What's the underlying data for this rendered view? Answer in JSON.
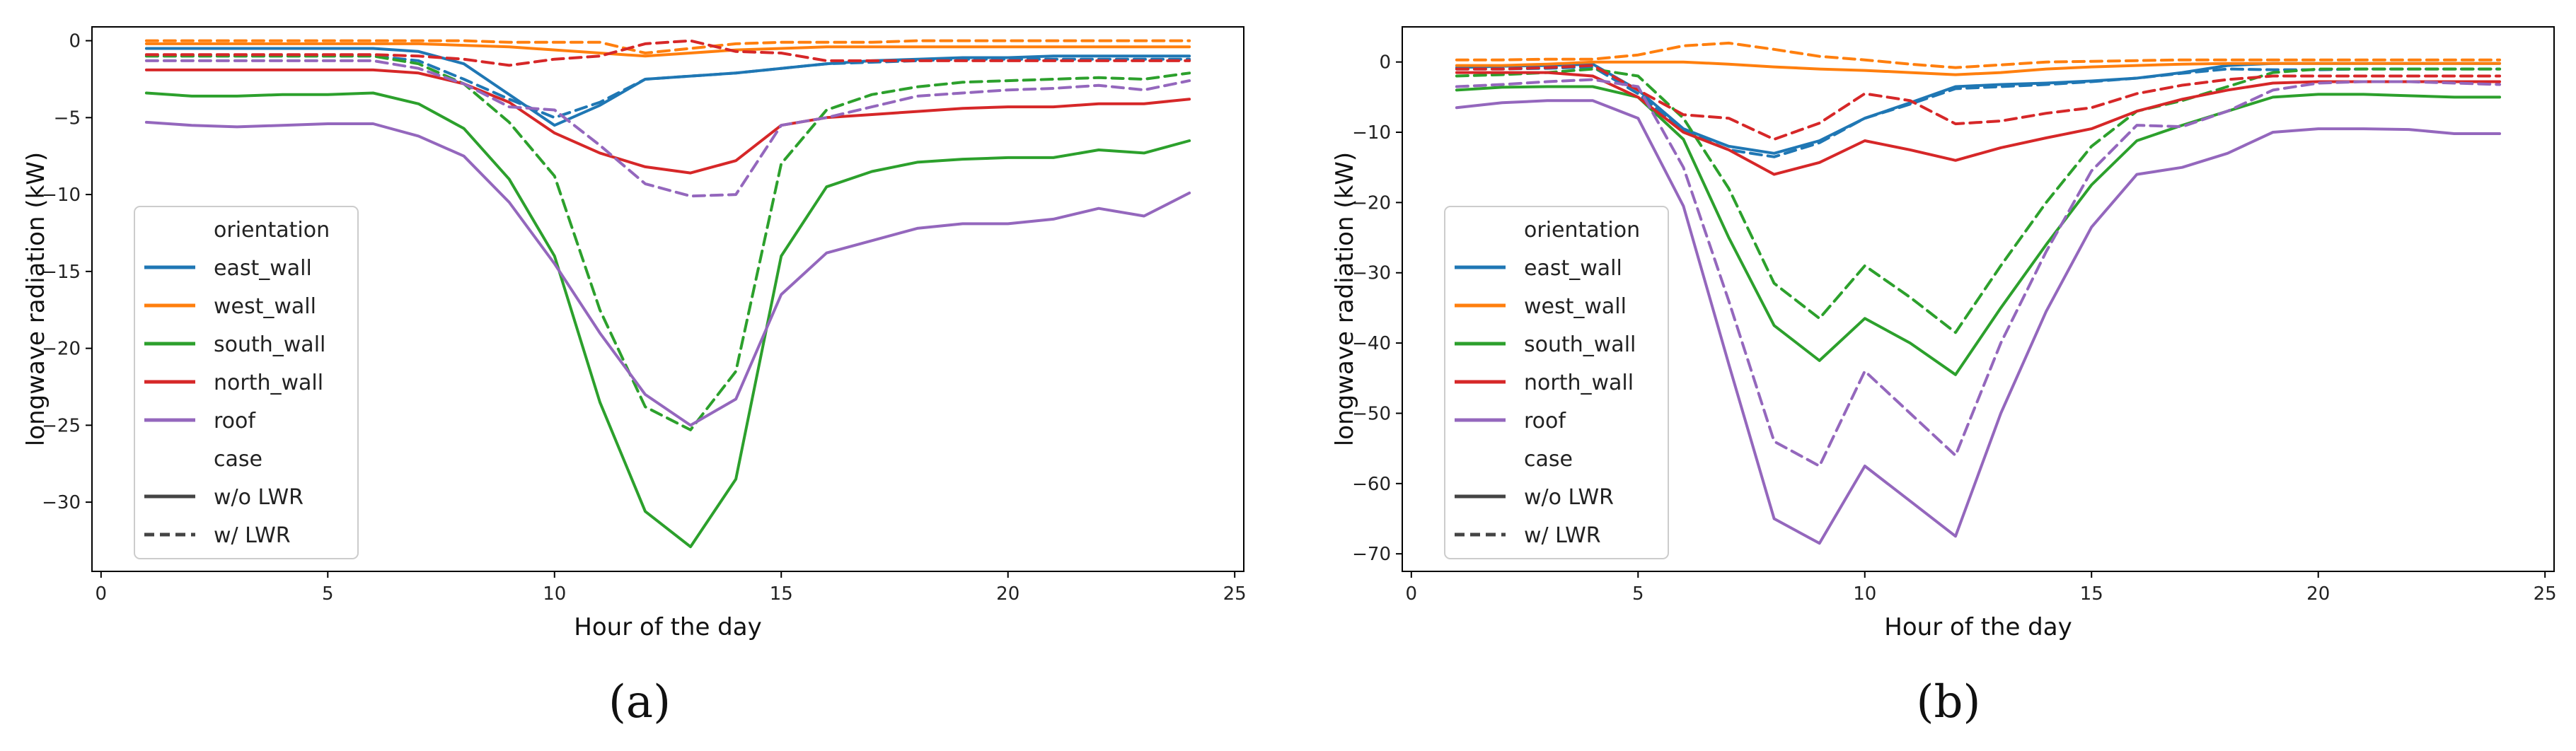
{
  "colors": {
    "east_wall": "#1f77b4",
    "west_wall": "#ff7f0e",
    "south_wall": "#2ca02c",
    "north_wall": "#d62728",
    "roof": "#9467bd",
    "case_line": "#444444"
  },
  "legend": {
    "hue_title": "orientation",
    "hue_entries": [
      "east_wall",
      "west_wall",
      "south_wall",
      "north_wall",
      "roof"
    ],
    "style_title": "case",
    "style_entries": [
      {
        "label": "w/o LWR",
        "dash": "solid"
      },
      {
        "label": "w/ LWR",
        "dash": "dashed"
      }
    ],
    "placement": "lower-left"
  },
  "chart_data": [
    {
      "type": "line",
      "panel_label": "(a)",
      "xlabel": "Hour of the day",
      "ylabel": "longwave radiation (kW)",
      "xlim": [
        -0.2,
        25.2
      ],
      "ylim": [
        -34.5,
        0.9
      ],
      "xticks": [
        0,
        5,
        10,
        15,
        20,
        25
      ],
      "yticks": [
        0,
        -5,
        -10,
        -15,
        -20,
        -25,
        -30
      ],
      "x": [
        1,
        2,
        3,
        4,
        5,
        6,
        7,
        8,
        9,
        10,
        11,
        12,
        13,
        14,
        15,
        16,
        17,
        18,
        19,
        20,
        21,
        22,
        23,
        24
      ],
      "series": [
        {
          "name": "east_wall",
          "case": "w/o LWR",
          "values": [
            -0.5,
            -0.5,
            -0.5,
            -0.5,
            -0.5,
            -0.5,
            -0.7,
            -1.5,
            -3.5,
            -5.5,
            -4.2,
            -2.5,
            -2.3,
            -2.1,
            -1.8,
            -1.5,
            -1.3,
            -1.2,
            -1.1,
            -1.1,
            -1.0,
            -1.0,
            -1.0,
            -1.0
          ]
        },
        {
          "name": "east_wall",
          "case": "w/ LWR",
          "values": [
            -1.0,
            -1.0,
            -1.0,
            -1.0,
            -1.0,
            -1.0,
            -1.3,
            -2.5,
            -3.8,
            -5.0,
            -4.0,
            -2.5,
            -2.3,
            -2.1,
            -1.8,
            -1.5,
            -1.4,
            -1.3,
            -1.2,
            -1.2,
            -1.2,
            -1.2,
            -1.2,
            -1.2
          ]
        },
        {
          "name": "west_wall",
          "case": "w/o LWR",
          "values": [
            -0.2,
            -0.2,
            -0.2,
            -0.2,
            -0.2,
            -0.2,
            -0.2,
            -0.3,
            -0.4,
            -0.6,
            -0.8,
            -1.0,
            -0.8,
            -0.6,
            -0.5,
            -0.4,
            -0.4,
            -0.4,
            -0.4,
            -0.4,
            -0.4,
            -0.4,
            -0.4,
            -0.4
          ]
        },
        {
          "name": "west_wall",
          "case": "w/ LWR",
          "values": [
            0.0,
            0.0,
            0.0,
            0.0,
            0.0,
            0.0,
            0.0,
            0.0,
            -0.1,
            -0.1,
            -0.1,
            -0.8,
            -0.5,
            -0.2,
            -0.1,
            -0.1,
            -0.1,
            0.0,
            0.0,
            0.0,
            0.0,
            0.0,
            0.0,
            0.0
          ]
        },
        {
          "name": "south_wall",
          "case": "w/o LWR",
          "values": [
            -3.4,
            -3.6,
            -3.6,
            -3.5,
            -3.5,
            -3.4,
            -4.1,
            -5.7,
            -9.0,
            -14.0,
            -23.5,
            -30.6,
            -32.9,
            -28.5,
            -14.0,
            -9.5,
            -8.5,
            -7.9,
            -7.7,
            -7.6,
            -7.6,
            -7.1,
            -7.3,
            -6.5
          ]
        },
        {
          "name": "south_wall",
          "case": "w/ LWR",
          "values": [
            -1.0,
            -1.0,
            -1.0,
            -1.0,
            -1.0,
            -1.0,
            -1.5,
            -2.8,
            -5.3,
            -8.8,
            -17.5,
            -23.8,
            -25.3,
            -21.5,
            -8.0,
            -4.5,
            -3.5,
            -3.0,
            -2.7,
            -2.6,
            -2.5,
            -2.4,
            -2.5,
            -2.1
          ]
        },
        {
          "name": "north_wall",
          "case": "w/o LWR",
          "values": [
            -1.9,
            -1.9,
            -1.9,
            -1.9,
            -1.9,
            -1.9,
            -2.1,
            -2.8,
            -4.0,
            -6.0,
            -7.3,
            -8.2,
            -8.6,
            -7.8,
            -5.5,
            -5.0,
            -4.8,
            -4.6,
            -4.4,
            -4.3,
            -4.3,
            -4.1,
            -4.1,
            -3.8
          ]
        },
        {
          "name": "north_wall",
          "case": "w/ LWR",
          "values": [
            -0.9,
            -0.9,
            -0.9,
            -0.9,
            -0.9,
            -0.9,
            -1.0,
            -1.2,
            -1.6,
            -1.2,
            -1.0,
            -0.2,
            0.0,
            -0.7,
            -0.8,
            -1.3,
            -1.3,
            -1.3,
            -1.3,
            -1.3,
            -1.3,
            -1.3,
            -1.3,
            -1.3
          ]
        },
        {
          "name": "roof",
          "case": "w/o LWR",
          "values": [
            -5.3,
            -5.5,
            -5.6,
            -5.5,
            -5.4,
            -5.4,
            -6.2,
            -7.5,
            -10.5,
            -14.5,
            -19.0,
            -23.0,
            -25.0,
            -23.3,
            -16.5,
            -13.8,
            -13.0,
            -12.2,
            -11.9,
            -11.9,
            -11.6,
            -10.9,
            -11.4,
            -9.9
          ]
        },
        {
          "name": "roof",
          "case": "w/ LWR",
          "values": [
            -1.3,
            -1.3,
            -1.3,
            -1.3,
            -1.3,
            -1.3,
            -1.8,
            -2.8,
            -4.3,
            -4.5,
            -6.8,
            -9.3,
            -10.1,
            -10.0,
            -5.5,
            -5.0,
            -4.3,
            -3.6,
            -3.4,
            -3.2,
            -3.1,
            -2.9,
            -3.2,
            -2.6
          ]
        }
      ]
    },
    {
      "type": "line",
      "panel_label": "(b)",
      "xlabel": "Hour of the day",
      "ylabel": "longwave radiation (kW)",
      "xlim": [
        -0.2,
        25.2
      ],
      "ylim": [
        -72.5,
        5.0
      ],
      "xticks": [
        0,
        5,
        10,
        15,
        20,
        25
      ],
      "yticks": [
        0,
        -10,
        -20,
        -30,
        -40,
        -50,
        -60,
        -70
      ],
      "x": [
        1,
        2,
        3,
        4,
        5,
        6,
        7,
        8,
        9,
        10,
        11,
        12,
        13,
        14,
        15,
        16,
        17,
        18,
        19,
        20,
        21,
        22,
        23,
        24
      ],
      "series": [
        {
          "name": "east_wall",
          "case": "w/o LWR",
          "values": [
            -0.8,
            -0.6,
            -0.5,
            -0.3,
            -4.0,
            -9.5,
            -12.0,
            -13.0,
            -11.2,
            -8.0,
            -5.8,
            -3.5,
            -3.2,
            -3.0,
            -2.7,
            -2.3,
            -1.5,
            -0.5,
            -0.2,
            -0.2,
            -0.2,
            -0.2,
            -0.2,
            -0.2
          ]
        },
        {
          "name": "east_wall",
          "case": "w/ LWR",
          "values": [
            -1.0,
            -1.0,
            -0.9,
            -0.7,
            -4.5,
            -9.8,
            -12.5,
            -13.5,
            -11.5,
            -8.0,
            -6.0,
            -3.8,
            -3.5,
            -3.2,
            -2.8,
            -2.3,
            -1.6,
            -1.0,
            -1.1,
            -1.1,
            -1.0,
            -1.0,
            -1.0,
            -1.0
          ]
        },
        {
          "name": "west_wall",
          "case": "w/o LWR",
          "values": [
            -0.5,
            -0.5,
            -0.3,
            0.0,
            0.0,
            0.0,
            -0.3,
            -0.7,
            -1.0,
            -1.2,
            -1.5,
            -1.8,
            -1.5,
            -1.0,
            -0.7,
            -0.5,
            -0.3,
            -0.2,
            -0.2,
            -0.2,
            -0.2,
            -0.2,
            -0.2,
            -0.2
          ]
        },
        {
          "name": "west_wall",
          "case": "w/ LWR",
          "values": [
            0.3,
            0.3,
            0.4,
            0.4,
            1.0,
            2.3,
            2.7,
            1.8,
            0.8,
            0.3,
            -0.3,
            -0.8,
            -0.4,
            0.0,
            0.1,
            0.2,
            0.3,
            0.3,
            0.3,
            0.3,
            0.3,
            0.3,
            0.3,
            0.3
          ]
        },
        {
          "name": "south_wall",
          "case": "w/o LWR",
          "values": [
            -4.0,
            -3.6,
            -3.5,
            -3.5,
            -5.0,
            -11.0,
            -25.0,
            -37.5,
            -42.5,
            -36.5,
            -40.0,
            -44.5,
            -35.0,
            -26.0,
            -17.5,
            -11.2,
            -9.0,
            -7.0,
            -5.0,
            -4.6,
            -4.6,
            -4.8,
            -5.0,
            -5.0
          ]
        },
        {
          "name": "south_wall",
          "case": "w/ LWR",
          "values": [
            -2.0,
            -1.8,
            -1.5,
            -1.0,
            -2.0,
            -8.0,
            -18.0,
            -31.5,
            -36.5,
            -29.0,
            -33.5,
            -38.5,
            -29.0,
            -20.0,
            -12.0,
            -7.0,
            -5.5,
            -3.5,
            -1.5,
            -1.0,
            -1.0,
            -1.0,
            -1.0,
            -1.0
          ]
        },
        {
          "name": "north_wall",
          "case": "w/o LWR",
          "values": [
            -1.5,
            -1.5,
            -1.5,
            -2.0,
            -5.0,
            -10.0,
            -12.5,
            -16.0,
            -14.3,
            -11.2,
            -12.5,
            -14.0,
            -12.2,
            -10.8,
            -9.5,
            -7.0,
            -5.3,
            -4.0,
            -3.0,
            -2.8,
            -2.8,
            -2.8,
            -2.8,
            -2.8
          ]
        },
        {
          "name": "north_wall",
          "case": "w/ LWR",
          "values": [
            -1.0,
            -1.0,
            -0.8,
            -0.5,
            -4.0,
            -7.5,
            -8.0,
            -11.0,
            -8.7,
            -4.5,
            -5.5,
            -8.8,
            -8.4,
            -7.3,
            -6.5,
            -4.5,
            -3.3,
            -2.5,
            -2.0,
            -2.0,
            -2.0,
            -2.0,
            -2.0,
            -2.0
          ]
        },
        {
          "name": "roof",
          "case": "w/o LWR",
          "values": [
            -6.5,
            -5.8,
            -5.5,
            -5.5,
            -8.0,
            -20.5,
            -43.0,
            -65.0,
            -68.5,
            -57.5,
            -62.5,
            -67.5,
            -50.0,
            -35.5,
            -23.5,
            -16.0,
            -15.0,
            -13.0,
            -10.0,
            -9.5,
            -9.5,
            -9.6,
            -10.2,
            -10.2
          ]
        },
        {
          "name": "roof",
          "case": "w/ LWR",
          "values": [
            -3.5,
            -3.2,
            -2.8,
            -2.5,
            -3.5,
            -15.0,
            -34.0,
            -54.0,
            -57.5,
            -44.0,
            -50.0,
            -56.0,
            -40.0,
            -27.0,
            -15.5,
            -9.0,
            -9.2,
            -7.0,
            -4.0,
            -3.0,
            -2.8,
            -2.8,
            -3.0,
            -3.2
          ]
        }
      ]
    }
  ]
}
